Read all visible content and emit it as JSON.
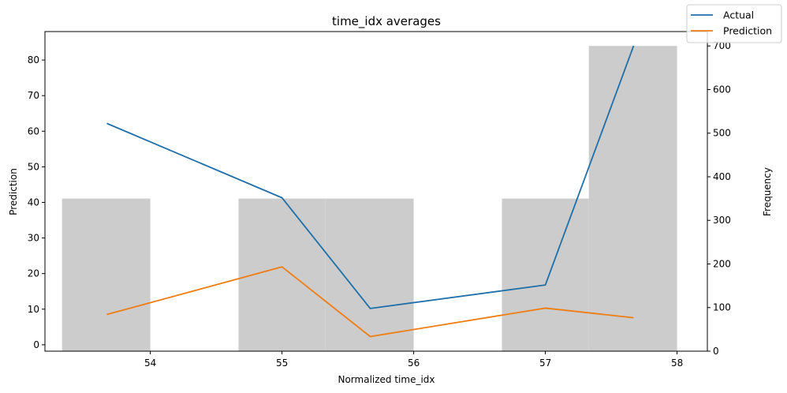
{
  "chart_data": {
    "type": "line",
    "title": "time_idx averages",
    "xlabel": "Normalized time_idx",
    "ylabel": "Prediction",
    "y2label": "Frequency",
    "xticks": [
      54,
      55,
      56,
      57,
      58
    ],
    "xlim": [
      53.2,
      58.23
    ],
    "yticks": [
      0,
      10,
      20,
      30,
      40,
      50,
      60,
      70,
      80
    ],
    "ylim": [
      -1.8,
      88
    ],
    "y2ticks": [
      0,
      100,
      200,
      300,
      400,
      500,
      600,
      700
    ],
    "y2lim": [
      0,
      733
    ],
    "grid": false,
    "legend_position": "top-right",
    "histogram": {
      "color": "#cccccc",
      "bins": [
        {
          "start": 53.33,
          "end": 54.0,
          "count": 350
        },
        {
          "start": 54.67,
          "end": 55.33,
          "count": 350
        },
        {
          "start": 55.33,
          "end": 56.0,
          "count": 350
        },
        {
          "start": 56.67,
          "end": 57.33,
          "count": 350
        },
        {
          "start": 57.33,
          "end": 58.0,
          "count": 700
        }
      ]
    },
    "x": [
      53.67,
      55.0,
      55.67,
      57.0,
      57.67
    ],
    "series": [
      {
        "name": "Actual",
        "color": "#1f6fa8",
        "values": [
          62.2,
          41.3,
          10.2,
          16.8,
          84.0
        ]
      },
      {
        "name": "Prediction",
        "color": "#ef7d12",
        "values": [
          8.5,
          21.9,
          2.3,
          10.3,
          7.6
        ]
      }
    ]
  }
}
